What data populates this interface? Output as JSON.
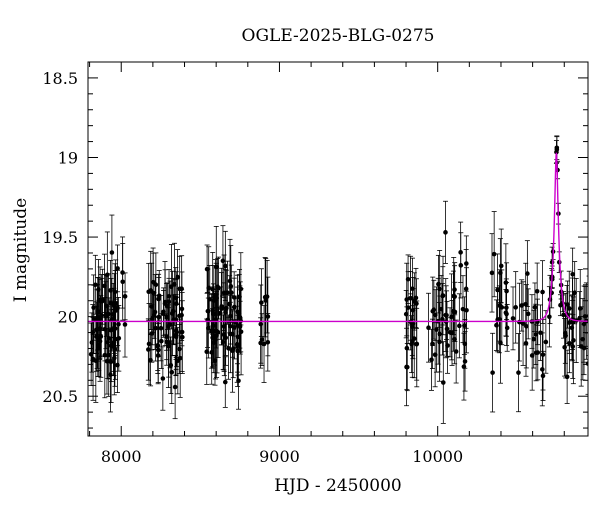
{
  "chart_data": {
    "type": "scatter",
    "title": "OGLE-2025-BLG-0275",
    "xlabel": "HJD - 2450000",
    "ylabel": "I magnitude",
    "xlim": [
      7790,
      10950
    ],
    "ylim": [
      20.75,
      18.4
    ],
    "y_inverted": true,
    "x_ticks": [
      8000,
      9000,
      10000
    ],
    "x_tick_labels": [
      "8000",
      "9000",
      "10000"
    ],
    "y_ticks": [
      18.5,
      19,
      19.5,
      20,
      20.5
    ],
    "y_tick_labels": [
      "18.5",
      "19",
      "19.5",
      "20",
      "20.5"
    ],
    "x_minor_step": 200,
    "y_minor_step": 0.1,
    "grid": false,
    "legend": "none",
    "colors": {
      "points": "#000000",
      "model": "#cc00cc"
    },
    "series": [
      {
        "kind": "points-with-errorbars",
        "seasons": [
          {
            "x_range": [
              7800,
              8030
            ],
            "points": 70
          },
          {
            "x_range": [
              8170,
              8390
            ],
            "points": 65
          },
          {
            "x_range": [
              8540,
              8760
            ],
            "points": 75
          },
          {
            "x_range": [
              8880,
              8930
            ],
            "points": 10
          },
          {
            "x_range": [
              9800,
              9870
            ],
            "points": 22
          },
          {
            "x_range": [
              9940,
              10190
            ],
            "points": 45
          },
          {
            "x_range": [
              10320,
              10960
            ],
            "points": 90
          }
        ],
        "baseline_mag": 20.03,
        "typical_error": 0.22
      },
      {
        "kind": "model-curve",
        "baseline_mag": 20.03,
        "peak_time": 10750,
        "peak_mag": 18.97,
        "tE": 32,
        "u0": 0.26
      }
    ]
  }
}
